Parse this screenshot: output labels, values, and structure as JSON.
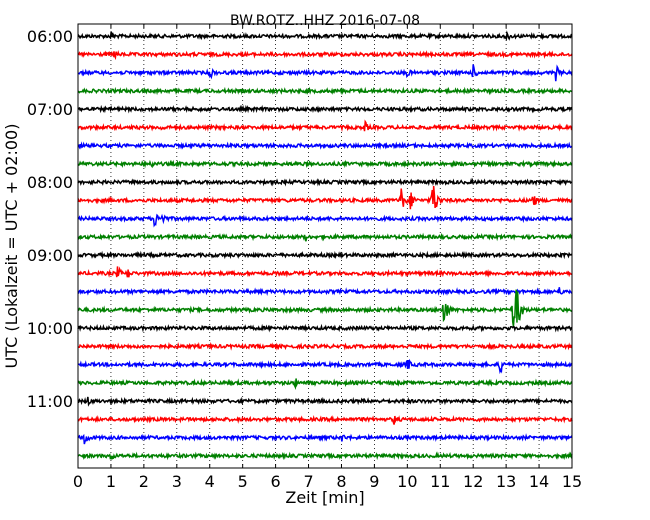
{
  "chart_data": {
    "type": "line",
    "title": "BW.ROTZ..HHZ 2016-07-08",
    "xlabel": "Zeit  [min]",
    "ylabel": "UTC (Lokalzeit = UTC + 02:00)",
    "xlim": [
      0,
      15
    ],
    "x_ticks": [
      0,
      1,
      2,
      3,
      4,
      5,
      6,
      7,
      8,
      9,
      10,
      11,
      12,
      13,
      14,
      15
    ],
    "x_tick_labels": [
      "0",
      "1",
      "2",
      "3",
      "4",
      "5",
      "6",
      "7",
      "8",
      "9",
      "10",
      "11",
      "12",
      "13",
      "14",
      "15"
    ],
    "ylim_start": "05:50",
    "ylim_end": "11:55",
    "y_ticks": [
      "06:00",
      "07:00",
      "08:00",
      "09:00",
      "10:00",
      "11:00"
    ],
    "row_interval_min": 15,
    "grid": "vertical dotted at each minute",
    "series_colors": [
      "#000000",
      "#ff0000",
      "#0000ff",
      "#008000"
    ],
    "traces": [
      {
        "start": "06:00",
        "color": "#000000",
        "events": [
          {
            "t": 1.0,
            "amp": 0.35
          },
          {
            "t": 13.0,
            "amp": 0.35
          }
        ]
      },
      {
        "start": "06:15",
        "color": "#ff0000",
        "events": [
          {
            "t": 1.1,
            "amp": 0.3
          }
        ]
      },
      {
        "start": "06:30",
        "color": "#0000ff",
        "events": [
          {
            "t": 4.0,
            "amp": 0.4
          },
          {
            "t": 10.0,
            "amp": 0.3
          },
          {
            "t": 12.0,
            "amp": 0.45
          },
          {
            "t": 14.5,
            "amp": 0.5
          }
        ]
      },
      {
        "start": "06:45",
        "color": "#008000",
        "events": []
      },
      {
        "start": "07:00",
        "color": "#000000",
        "events": []
      },
      {
        "start": "07:15",
        "color": "#ff0000",
        "events": [
          {
            "t": 2.5,
            "amp": 0.3
          },
          {
            "t": 8.7,
            "amp": 0.4
          }
        ]
      },
      {
        "start": "07:30",
        "color": "#0000ff",
        "events": []
      },
      {
        "start": "07:45",
        "color": "#008000",
        "events": [
          {
            "t": 2.2,
            "amp": 0.3
          }
        ]
      },
      {
        "start": "08:00",
        "color": "#000000",
        "events": []
      },
      {
        "start": "08:15",
        "color": "#ff0000",
        "events": [
          {
            "t": 9.8,
            "amp": 0.8
          },
          {
            "t": 10.1,
            "amp": 0.6
          },
          {
            "t": 10.75,
            "amp": 1.4
          },
          {
            "t": 13.8,
            "amp": 0.5
          }
        ]
      },
      {
        "start": "08:30",
        "color": "#0000ff",
        "events": [
          {
            "t": 2.3,
            "amp": 0.6
          },
          {
            "t": 2.55,
            "amp": 0.4
          }
        ]
      },
      {
        "start": "08:45",
        "color": "#008000",
        "events": [
          {
            "t": 6.9,
            "amp": 0.3
          }
        ]
      },
      {
        "start": "09:00",
        "color": "#000000",
        "events": []
      },
      {
        "start": "09:15",
        "color": "#ff0000",
        "events": [
          {
            "t": 1.2,
            "amp": 0.4
          },
          {
            "t": 1.5,
            "amp": 0.4
          }
        ]
      },
      {
        "start": "09:30",
        "color": "#0000ff",
        "events": [
          {
            "t": 14.6,
            "amp": 0.3
          }
        ]
      },
      {
        "start": "09:45",
        "color": "#008000",
        "events": [
          {
            "t": 11.1,
            "amp": 1.0
          },
          {
            "t": 13.2,
            "amp": 1.2
          },
          {
            "t": 13.3,
            "amp": 1.6
          }
        ]
      },
      {
        "start": "10:00",
        "color": "#000000",
        "events": []
      },
      {
        "start": "10:15",
        "color": "#ff0000",
        "events": []
      },
      {
        "start": "10:30",
        "color": "#0000ff",
        "events": [
          {
            "t": 10.0,
            "amp": 0.4
          },
          {
            "t": 12.8,
            "amp": 0.6
          }
        ]
      },
      {
        "start": "10:45",
        "color": "#008000",
        "events": [
          {
            "t": 6.6,
            "amp": 0.3
          }
        ]
      },
      {
        "start": "11:00",
        "color": "#000000",
        "events": [
          {
            "t": 0.3,
            "amp": 0.3
          }
        ]
      },
      {
        "start": "11:15",
        "color": "#ff0000",
        "events": [
          {
            "t": 9.6,
            "amp": 0.35
          }
        ]
      },
      {
        "start": "11:30",
        "color": "#0000ff",
        "events": [
          {
            "t": 0.2,
            "amp": 0.5
          },
          {
            "t": 8.0,
            "amp": 0.3
          }
        ]
      },
      {
        "start": "11:45",
        "color": "#008000",
        "events": [
          {
            "t": 1.0,
            "amp": 0.35
          }
        ]
      }
    ]
  }
}
